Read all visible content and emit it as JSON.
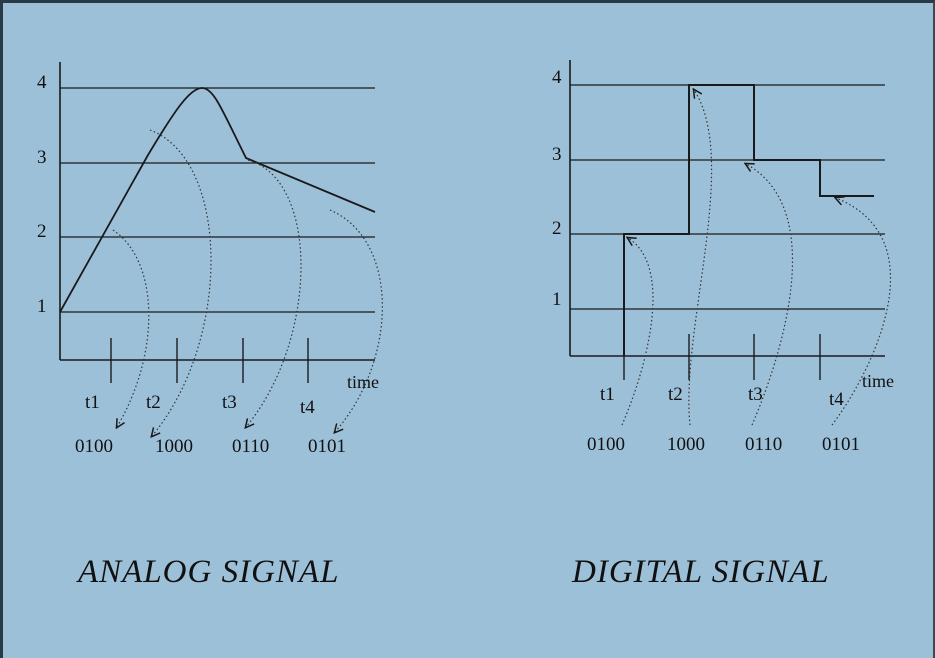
{
  "colors": {
    "background": "#9dc0d9",
    "line": "#1a1a1a"
  },
  "analog": {
    "title": "ANALOG SIGNAL",
    "y_labels": [
      "1",
      "2",
      "3",
      "4"
    ],
    "x_labels": [
      "t1",
      "t2",
      "t3",
      "t4"
    ],
    "axis_label": "time",
    "codes": [
      "0100",
      "1000",
      "0110",
      "0101"
    ]
  },
  "digital": {
    "title": "DIGITAL SIGNAL",
    "y_labels": [
      "1",
      "2",
      "3",
      "4"
    ],
    "x_labels": [
      "t1",
      "t2",
      "t3",
      "t4"
    ],
    "axis_label": "time",
    "codes": [
      "0100",
      "1000",
      "0110",
      "0101"
    ]
  }
}
